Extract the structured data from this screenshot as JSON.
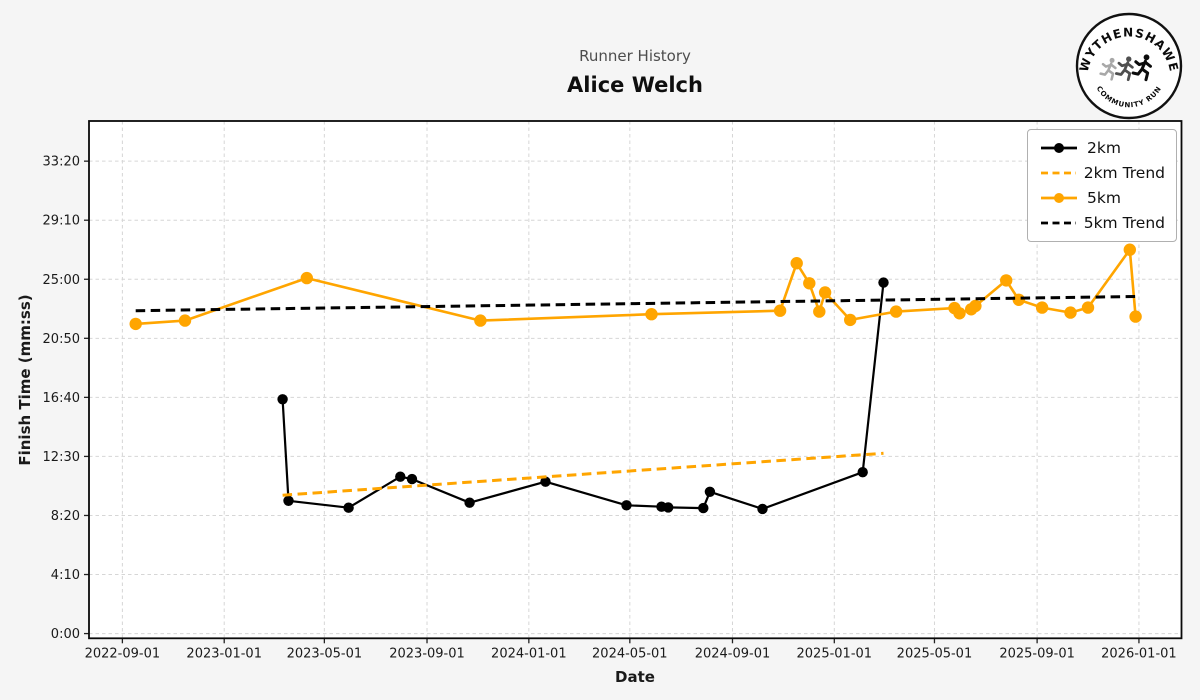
{
  "header": {
    "subtitle": "Runner History",
    "title": "Alice Welch"
  },
  "logo": {
    "top_text": "WYTHENSHAWE",
    "bottom_text": "COMMUNITY RUN",
    "runner_colors": [
      "#a8a8a8",
      "#4f4f4f",
      "#0c0c0c"
    ]
  },
  "colors": {
    "background": "#f5f5f5",
    "plot_background": "#ffffff",
    "accent_orange": "#FFA500",
    "series_black": "#000000",
    "grid": "#d6d6d6",
    "spine": "#0a0a0a",
    "tick_text": "#1a1a1a",
    "subtitle_text": "#4d4d4d"
  },
  "chart_data": {
    "type": "line",
    "title": "Runner History",
    "subtitle": "Alice Welch",
    "xlabel": "Date",
    "ylabel": "Finish Time (mm:ss)",
    "grid": true,
    "legend_position": "upper right",
    "x_ticks": [
      "2022-09-01",
      "2023-01-01",
      "2023-05-01",
      "2023-09-01",
      "2024-01-01",
      "2024-05-01",
      "2024-09-01",
      "2025-01-01",
      "2025-05-01",
      "2025-09-01",
      "2026-01-01"
    ],
    "y_ticks": [
      "0:00",
      "4:10",
      "8:20",
      "12:30",
      "16:40",
      "20:50",
      "25:00",
      "29:10",
      "33:20"
    ],
    "x_range": [
      "2022-07-23",
      "2026-02-21"
    ],
    "y_range_seconds": [
      -20,
      2170
    ],
    "series": [
      {
        "id": "2km",
        "name": "2km",
        "color": "#000000",
        "linestyle": "solid",
        "line_width": 2.2,
        "marker": true,
        "marker_radius": 5.2,
        "points": [
          [
            "2023-03-12",
            "16:32"
          ],
          [
            "2023-03-19",
            "9:22"
          ],
          [
            "2023-05-30",
            "8:53"
          ],
          [
            "2023-07-31",
            "11:04"
          ],
          [
            "2023-08-14",
            "10:54"
          ],
          [
            "2023-10-22",
            "9:14"
          ],
          [
            "2024-01-21",
            "10:43"
          ],
          [
            "2024-04-27",
            "9:03"
          ],
          [
            "2024-06-08",
            "8:57"
          ],
          [
            "2024-06-16",
            "8:54"
          ],
          [
            "2024-07-28",
            "8:51"
          ],
          [
            "2024-08-05",
            "10:00"
          ],
          [
            "2024-10-07",
            "8:48"
          ],
          [
            "2025-02-04",
            "11:23"
          ],
          [
            "2025-03-01",
            "24:46"
          ]
        ]
      },
      {
        "id": "2km-trend",
        "name": "2km Trend",
        "color": "#FFA500",
        "linestyle": "dashed",
        "line_width": 3,
        "marker": false,
        "marker_radius": 0,
        "points": [
          [
            "2023-03-12",
            "9:46"
          ],
          [
            "2025-03-01",
            "12:43"
          ]
        ]
      },
      {
        "id": "5km",
        "name": "5km",
        "color": "#FFA500",
        "linestyle": "solid",
        "line_width": 2.6,
        "marker": true,
        "marker_radius": 6.2,
        "points": [
          [
            "2022-09-17",
            "21:51"
          ],
          [
            "2022-11-15",
            "22:05"
          ],
          [
            "2023-04-10",
            "25:05"
          ],
          [
            "2023-11-04",
            "22:05"
          ],
          [
            "2024-05-27",
            "22:32"
          ],
          [
            "2024-10-28",
            "22:47"
          ],
          [
            "2024-11-17",
            "26:08"
          ],
          [
            "2024-12-02",
            "24:43"
          ],
          [
            "2024-12-14",
            "22:43"
          ],
          [
            "2024-12-21",
            "24:04"
          ],
          [
            "2025-01-20",
            "22:08"
          ],
          [
            "2025-03-16",
            "22:43"
          ],
          [
            "2025-05-25",
            "22:58"
          ],
          [
            "2025-05-31",
            "22:36"
          ],
          [
            "2025-06-14",
            "22:53"
          ],
          [
            "2025-06-19",
            "23:07"
          ],
          [
            "2025-07-26",
            "24:55"
          ],
          [
            "2025-08-10",
            "23:33"
          ],
          [
            "2025-09-07",
            "23:00"
          ],
          [
            "2025-10-11",
            "22:39"
          ],
          [
            "2025-11-01",
            "23:00"
          ],
          [
            "2025-12-21",
            "27:05"
          ],
          [
            "2025-12-28",
            "22:22"
          ]
        ]
      },
      {
        "id": "5km-trend",
        "name": "5km Trend",
        "color": "#000000",
        "linestyle": "dashed",
        "line_width": 3,
        "marker": false,
        "marker_radius": 0,
        "points": [
          [
            "2022-09-17",
            "22:47"
          ],
          [
            "2025-12-28",
            "23:47"
          ]
        ]
      }
    ]
  }
}
